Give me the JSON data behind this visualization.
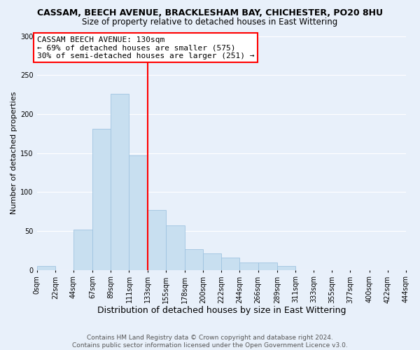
{
  "title": "CASSAM, BEECH AVENUE, BRACKLESHAM BAY, CHICHESTER, PO20 8HU",
  "subtitle": "Size of property relative to detached houses in East Wittering",
  "xlabel": "Distribution of detached houses by size in East Wittering",
  "ylabel": "Number of detached properties",
  "bin_edges": [
    0,
    22,
    44,
    67,
    89,
    111,
    133,
    155,
    178,
    200,
    222,
    244,
    266,
    289,
    311,
    333,
    355,
    377,
    400,
    422,
    444
  ],
  "bar_heights": [
    5,
    0,
    52,
    181,
    226,
    147,
    77,
    57,
    27,
    21,
    16,
    10,
    10,
    5,
    0,
    0,
    0,
    0,
    0,
    0
  ],
  "bar_color": "#c8dff0",
  "bar_edge_color": "#a0c4e0",
  "vline_x": 133,
  "vline_color": "red",
  "annotation_text": "CASSAM BEECH AVENUE: 130sqm\n← 69% of detached houses are smaller (575)\n30% of semi-detached houses are larger (251) →",
  "annotation_box_color": "white",
  "annotation_box_edge": "red",
  "ylim": [
    0,
    300
  ],
  "yticks": [
    0,
    50,
    100,
    150,
    200,
    250,
    300
  ],
  "tick_labels": [
    "0sqm",
    "22sqm",
    "44sqm",
    "67sqm",
    "89sqm",
    "111sqm",
    "133sqm",
    "155sqm",
    "178sqm",
    "200sqm",
    "222sqm",
    "244sqm",
    "266sqm",
    "289sqm",
    "311sqm",
    "333sqm",
    "355sqm",
    "377sqm",
    "400sqm",
    "422sqm",
    "444sqm"
  ],
  "footer": "Contains HM Land Registry data © Crown copyright and database right 2024.\nContains public sector information licensed under the Open Government Licence v3.0.",
  "bg_color": "#e8f0fa",
  "plot_bg_color": "#e8f0fa",
  "grid_color": "#ffffff",
  "title_fontsize": 9,
  "subtitle_fontsize": 8.5,
  "xlabel_fontsize": 9,
  "ylabel_fontsize": 8,
  "tick_fontsize": 7,
  "footer_fontsize": 6.5,
  "annotation_fontsize": 8
}
